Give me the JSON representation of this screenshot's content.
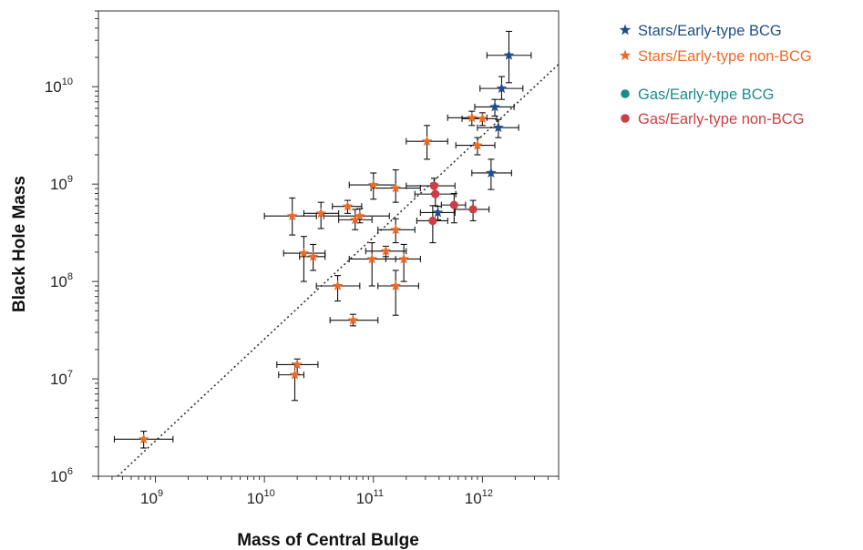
{
  "chart_data": {
    "type": "scatter",
    "title": "",
    "xlabel": "Mass of Central Bulge",
    "ylabel": "Black Hole Mass",
    "x_scale": "log",
    "y_scale": "log",
    "xlim": [
      300000000,
      5000000000000
    ],
    "ylim": [
      1000000,
      60000000000
    ],
    "x_ticks": [
      {
        "value": 1000000000,
        "mantissa": "10",
        "exponent": "9"
      },
      {
        "value": 10000000000,
        "mantissa": "10",
        "exponent": "10"
      },
      {
        "value": 100000000000,
        "mantissa": "10",
        "exponent": "11"
      },
      {
        "value": 1000000000000,
        "mantissa": "10",
        "exponent": "12"
      }
    ],
    "y_ticks": [
      {
        "value": 1000000,
        "mantissa": "10",
        "exponent": "6"
      },
      {
        "value": 10000000,
        "mantissa": "10",
        "exponent": "7"
      },
      {
        "value": 100000000,
        "mantissa": "10",
        "exponent": "8"
      },
      {
        "value": 1000000000,
        "mantissa": "10",
        "exponent": "9"
      },
      {
        "value": 10000000000,
        "mantissa": "10",
        "exponent": "10"
      }
    ],
    "grid": false,
    "legend_position": "outside-top-right",
    "reference_line": {
      "style": "dotted",
      "color": "#333333",
      "points": [
        [
          450000000,
          1000000
        ],
        [
          5000000000000,
          17000000000
        ]
      ]
    },
    "series": [
      {
        "name": "Stars/Early-type BCG",
        "marker": "star",
        "color": "#1f4e8c",
        "points": [
          {
            "x": 1750000000000,
            "y": 21000000000,
            "xerr": [
              1100000000000,
              2800000000000
            ],
            "yerr": [
              11000000000,
              37000000000
            ]
          },
          {
            "x": 1500000000000,
            "y": 9600000000,
            "xerr": [
              950000000000,
              2350000000000
            ],
            "yerr": [
              7400000000,
              12700000000
            ]
          },
          {
            "x": 1300000000000,
            "y": 6200000000,
            "xerr": [
              850000000000,
              1950000000000
            ],
            "yerr": [
              5000000000,
              7400000000
            ]
          },
          {
            "x": 1400000000000,
            "y": 3800000000,
            "xerr": [
              900000000000,
              2150000000000
            ],
            "yerr": [
              3000000000,
              4600000000
            ]
          },
          {
            "x": 1200000000000,
            "y": 1300000000,
            "xerr": [
              800000000000,
              1850000000000
            ],
            "yerr": [
              880000000,
              1800000000
            ]
          },
          {
            "x": 390000000000,
            "y": 510000000,
            "xerr": [
              270000000000,
              560000000000
            ],
            "yerr": [
              430000000,
              590000000
            ]
          }
        ]
      },
      {
        "name": "Stars/Early-type non-BCG",
        "marker": "star",
        "color": "#ee6a25",
        "points": [
          {
            "x": 780000000,
            "y": 2400000,
            "xerr": [
              420000000,
              1450000000
            ],
            "yerr": [
              1950000,
              2900000
            ]
          },
          {
            "x": 19000000000,
            "y": 11000000,
            "xerr": [
              13500000000,
              23000000000
            ],
            "yerr": [
              6000000,
              14500000
            ]
          },
          {
            "x": 20000000000,
            "y": 14000000,
            "xerr": [
              13000000000,
              31000000000
            ],
            "yerr": [
              11000000,
              16000000
            ]
          },
          {
            "x": 65000000000,
            "y": 40000000,
            "xerr": [
              40000000000,
              110000000000
            ],
            "yerr": [
              35000000,
              46000000
            ]
          },
          {
            "x": 47000000000,
            "y": 90000000,
            "xerr": [
              30000000000,
              75000000000
            ],
            "yerr": [
              63000000,
              115000000
            ]
          },
          {
            "x": 160000000000,
            "y": 90000000,
            "xerr": [
              110000000000,
              260000000000
            ],
            "yerr": [
              45000000,
              130000000
            ]
          },
          {
            "x": 23000000000,
            "y": 195000000,
            "xerr": [
              15000000000,
              36000000000
            ],
            "yerr": [
              100000000,
              290000000
            ]
          },
          {
            "x": 28000000000,
            "y": 180000000,
            "xerr": [
              21000000000,
              36000000000
            ],
            "yerr": [
              130000000,
              240000000
            ]
          },
          {
            "x": 97000000000,
            "y": 170000000,
            "xerr": [
              60000000000,
              160000000000
            ],
            "yerr": [
              90000000,
              250000000
            ]
          },
          {
            "x": 130000000000,
            "y": 205000000,
            "xerr": [
              85000000000,
              200000000000
            ],
            "yerr": [
              180000000,
              230000000
            ]
          },
          {
            "x": 190000000000,
            "y": 170000000,
            "xerr": [
              130000000000,
              270000000000
            ],
            "yerr": [
              100000000,
              240000000
            ]
          },
          {
            "x": 160000000000,
            "y": 340000000,
            "xerr": [
              110000000000,
              240000000000
            ],
            "yerr": [
              250000000,
              440000000
            ]
          },
          {
            "x": 18000000000,
            "y": 470000000,
            "xerr": [
              10000000000,
              30000000000
            ],
            "yerr": [
              300000000,
              720000000
            ]
          },
          {
            "x": 33000000000,
            "y": 500000000,
            "xerr": [
              23000000000,
              48000000000
            ],
            "yerr": [
              350000000,
              650000000
            ]
          },
          {
            "x": 58000000000,
            "y": 590000000,
            "xerr": [
              42000000000,
              78000000000
            ],
            "yerr": [
              500000000,
              680000000
            ]
          },
          {
            "x": 68000000000,
            "y": 430000000,
            "xerr": [
              48000000000,
              97000000000
            ],
            "yerr": [
              340000000,
              550000000
            ]
          },
          {
            "x": 75000000000,
            "y": 470000000,
            "xerr": [
              35000000000,
              140000000000
            ],
            "yerr": [
              400000000,
              560000000
            ]
          },
          {
            "x": 100000000000,
            "y": 980000000,
            "xerr": [
              60000000000,
              160000000000
            ],
            "yerr": [
              700000000,
              1300000000
            ]
          },
          {
            "x": 160000000000,
            "y": 910000000,
            "xerr": [
              95000000000,
              270000000000
            ],
            "yerr": [
              650000000,
              1400000000
            ]
          },
          {
            "x": 310000000000,
            "y": 2750000000,
            "xerr": [
              200000000000,
              480000000000
            ],
            "yerr": [
              1800000000,
              4000000000
            ]
          },
          {
            "x": 800000000000,
            "y": 4800000000,
            "xerr": [
              480000000000,
              1100000000000
            ],
            "yerr": [
              4000000000,
              5600000000
            ]
          },
          {
            "x": 1000000000000,
            "y": 4700000000,
            "xerr": [
              650000000000,
              1350000000000
            ],
            "yerr": [
              4000000000,
              5400000000
            ]
          },
          {
            "x": 900000000000,
            "y": 2500000000,
            "xerr": [
              570000000000,
              1300000000000
            ],
            "yerr": [
              2000000000,
              3000000000
            ]
          }
        ]
      },
      {
        "name": "Gas/Early-type BCG",
        "marker": "circle",
        "color": "#1a8b8d",
        "points": []
      },
      {
        "name": "Gas/Early-type non-BCG",
        "marker": "circle",
        "color": "#cc3f44",
        "points": [
          {
            "x": 360000000000,
            "y": 960000000,
            "xerr": [
              200000000000,
              560000000000
            ],
            "yerr": [
              800000000,
              1150000000
            ]
          },
          {
            "x": 370000000000,
            "y": 790000000,
            "xerr": [
              240000000000,
              570000000000
            ],
            "yerr": [
              600000000,
              1000000000
            ]
          },
          {
            "x": 350000000000,
            "y": 420000000,
            "xerr": [
              250000000000,
              480000000000
            ],
            "yerr": [
              250000000,
              600000000
            ]
          },
          {
            "x": 550000000000,
            "y": 610000000,
            "xerr": [
              420000000000,
              700000000000
            ],
            "yerr": [
              400000000,
              800000000
            ]
          },
          {
            "x": 820000000000,
            "y": 550000000,
            "xerr": [
              560000000000,
              1150000000000
            ],
            "yerr": [
              420000000,
              680000000
            ]
          }
        ]
      }
    ]
  }
}
